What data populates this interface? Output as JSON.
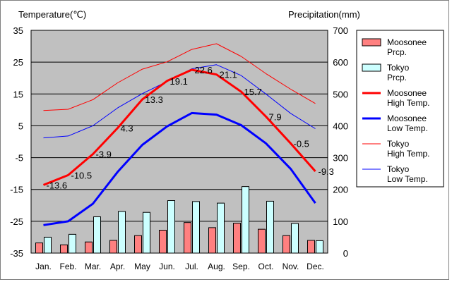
{
  "chart_data": {
    "type": "bar",
    "left_axis_title": "Temperature(℃)",
    "right_axis_title": "Precipitation(mm)",
    "categories": [
      "Jan.",
      "Feb.",
      "Mar.",
      "Apr.",
      "May",
      "Jun.",
      "Jul.",
      "Aug.",
      "Sep.",
      "Oct.",
      "Nov.",
      "Dec."
    ],
    "y_left": {
      "min": -35,
      "max": 35,
      "ticks": [
        "35",
        "25",
        "15",
        "5",
        "-5",
        "-15",
        "-25",
        "-35"
      ]
    },
    "y_right": {
      "min": 0,
      "max": 700,
      "ticks": [
        "700",
        "600",
        "500",
        "400",
        "300",
        "200",
        "100",
        "0"
      ]
    },
    "grid": true,
    "legend_position": "right",
    "bar_series": [
      {
        "name": "Moosonee Prcp.",
        "axis": "right",
        "color": "#ff8080",
        "values": [
          32,
          26,
          35,
          40,
          55,
          72,
          96,
          80,
          94,
          75,
          55,
          40
        ]
      },
      {
        "name": "Tokyo Prcp.",
        "axis": "right",
        "color": "#ccffff",
        "values": [
          50,
          59,
          114,
          131,
          128,
          165,
          162,
          157,
          209,
          163,
          93,
          39
        ]
      }
    ],
    "line_series": [
      {
        "name": "Moosonee High Temp.",
        "axis": "left",
        "color": "#ff0000",
        "width": 3,
        "values": [
          -13.6,
          -10.5,
          -3.9,
          4.3,
          13.3,
          19.1,
          22.6,
          21.1,
          15.7,
          7.9,
          -0.5,
          -9.3
        ],
        "data_labels": [
          "-13.6",
          "-10.5",
          "-3.9",
          "4.3",
          "13.3",
          "19.1",
          "22.6",
          "21.1",
          "15.7",
          "7.9",
          "-0.5",
          "-9.3"
        ]
      },
      {
        "name": "Moosonee Low Temp.",
        "axis": "left",
        "color": "#0000ff",
        "width": 3,
        "values": [
          -26.2,
          -25.0,
          -19.5,
          -9.5,
          -1.0,
          4.8,
          9.0,
          8.5,
          5.2,
          -0.5,
          -8.5,
          -19.3
        ]
      },
      {
        "name": "Tokyo High Temp.",
        "axis": "left",
        "color": "#ff0000",
        "width": 1,
        "values": [
          9.8,
          10.2,
          13.2,
          18.5,
          22.8,
          25.1,
          29.0,
          30.8,
          26.8,
          21.4,
          16.5,
          12.0
        ]
      },
      {
        "name": "Tokyo Low Temp.",
        "axis": "left",
        "color": "#0000ff",
        "width": 1,
        "values": [
          1.2,
          1.8,
          5.0,
          10.6,
          15.1,
          18.9,
          22.9,
          24.2,
          20.8,
          15.0,
          8.9,
          4.1
        ]
      }
    ],
    "legend": [
      {
        "label": "Moosonee\nPrcp.",
        "kind": "box",
        "color": "#ff8080"
      },
      {
        "label": "Tokyo\nPrcp.",
        "kind": "box",
        "color": "#ccffff"
      },
      {
        "label": "Moosonee\nHigh Temp.",
        "kind": "line",
        "color": "#ff0000",
        "width": 3
      },
      {
        "label": "Moosonee\nLow Temp.",
        "kind": "line",
        "color": "#0000ff",
        "width": 3
      },
      {
        "label": "Tokyo\nHigh Temp.",
        "kind": "line",
        "color": "#ff0000",
        "width": 1
      },
      {
        "label": "Tokyo\nLow Temp.",
        "kind": "line",
        "color": "#0000ff",
        "width": 1
      }
    ]
  }
}
